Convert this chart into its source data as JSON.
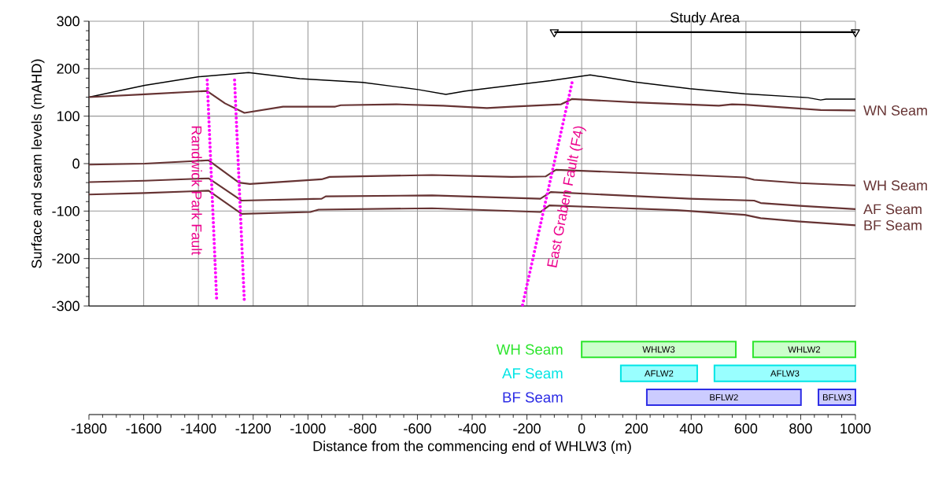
{
  "chart_data": [
    {
      "type": "line",
      "ylabel": "Surface and seam levels (mAHD)",
      "xlim": [
        -1800,
        1000
      ],
      "ylim": [
        -300,
        300
      ],
      "xticks": [
        -1800,
        -1600,
        -1400,
        -1200,
        -1000,
        -800,
        -600,
        -400,
        -200,
        0,
        200,
        400,
        600,
        800,
        1000
      ],
      "yticks": [
        -300,
        -200,
        -100,
        0,
        100,
        200,
        300
      ],
      "tick_labels": "y",
      "grid": true,
      "marker": "none",
      "line_style": "solid",
      "series": [
        {
          "color": "#000000",
          "x": [
            -1800,
            -1596,
            -1398,
            -1217,
            -1030,
            -800,
            -597,
            -496,
            -425,
            -256,
            -113,
            31,
            194,
            395,
            596,
            826,
            873,
            893,
            1000
          ],
          "values": [
            140,
            165,
            183,
            192,
            179,
            171,
            156,
            146,
            153,
            165,
            175,
            187,
            172,
            158,
            147,
            139,
            134,
            136,
            136
          ]
        },
        {
          "name": "WN Seam",
          "color": "#663333",
          "x": [
            -1800,
            -1596,
            -1369,
            -1303,
            -1232,
            -1091,
            -900,
            -880,
            -677,
            -506,
            -346,
            -256,
            -75,
            -36,
            194,
            501,
            549,
            596,
            873,
            1000
          ],
          "values": [
            140,
            146,
            153,
            127,
            107,
            120,
            120,
            123,
            125,
            122,
            117,
            120,
            125,
            136,
            129,
            122,
            125,
            124,
            113,
            112
          ]
        },
        {
          "name": "WH Seam",
          "color": "#663333",
          "x": [
            -1800,
            -1596,
            -1363,
            -1252,
            -1212,
            -950,
            -921,
            -547,
            -256,
            -132,
            -94,
            395,
            596,
            630,
            797,
            1000
          ],
          "values": [
            -2,
            0,
            7,
            -40,
            -43,
            -33,
            -28,
            -24,
            -28,
            -27,
            -13,
            -24,
            -29,
            -34,
            -41,
            -46
          ]
        },
        {
          "name": "AF Seam",
          "color": "#663333",
          "x": [
            -1800,
            -1596,
            -1363,
            -1242,
            -950,
            -935,
            -547,
            -151,
            -113,
            395,
            630,
            654,
            797,
            1000
          ],
          "values": [
            -39,
            -36,
            -31,
            -78,
            -74,
            -69,
            -67,
            -74,
            -60,
            -74,
            -78,
            -83,
            -89,
            -96
          ]
        },
        {
          "name": "BF Seam",
          "color": "#663333",
          "x": [
            -1800,
            -1596,
            -1363,
            -1242,
            -991,
            -961,
            -547,
            -151,
            -118,
            347,
            596,
            654,
            797,
            1000
          ],
          "values": [
            -65,
            -62,
            -57,
            -106,
            -102,
            -97,
            -94,
            -102,
            -88,
            -98,
            -108,
            -115,
            -122,
            -130
          ]
        },
        {
          "color": "#ff00ff",
          "line_style": "dotted",
          "x": [
            -1368,
            -1333
          ],
          "values": [
            176,
            -292
          ]
        },
        {
          "color": "#ff00ff",
          "line_style": "dotted",
          "x": [
            -1268,
            -1232
          ],
          "values": [
            176,
            -295
          ]
        },
        {
          "color": "#ff00ff",
          "line_style": "dotted",
          "x": [
            -216,
            -32
          ],
          "values": [
            -298,
            179
          ]
        },
        {
          "name": "Study Area",
          "color": "#000000",
          "marker": "triangle",
          "x": [
            -100,
            1000
          ],
          "values": [
            277,
            277
          ]
        }
      ],
      "annotations": [
        {
          "text": "Randwick Park Fault",
          "x": -1406,
          "y": -56
        },
        {
          "text": "East Graben Fault (F4)",
          "x": -55,
          "y": -70
        }
      ]
    },
    {
      "type": "bar",
      "orientation": "horizontal",
      "xlabel": "Distance from the commencing end of WHLW3 (m)",
      "xlim": [
        -1800,
        1000
      ],
      "xticks": [
        -1800,
        -1600,
        -1400,
        -1200,
        -1000,
        -800,
        -600,
        -400,
        -200,
        0,
        200,
        400,
        600,
        800,
        1000
      ],
      "categories": [
        "WH Seam",
        "AF Seam",
        "BF Seam"
      ],
      "series": [
        {
          "values": [
            563,
            279,
            563
          ],
          "base": [
            0,
            143,
            238
          ],
          "colors": [
            "#ccffcc",
            "#99ffff",
            "#ccccff"
          ],
          "value_labels": [
            "WHLW3",
            "AFLW2",
            "BFLW2"
          ]
        },
        {
          "values": [
            374,
            515,
            135
          ],
          "base": [
            626,
            485,
            865
          ],
          "colors": [
            "#ccffcc",
            "#99ffff",
            "#ccccff"
          ],
          "value_labels": [
            "WHLW2",
            "AFLW3",
            "BFLW3"
          ]
        }
      ]
    }
  ]
}
